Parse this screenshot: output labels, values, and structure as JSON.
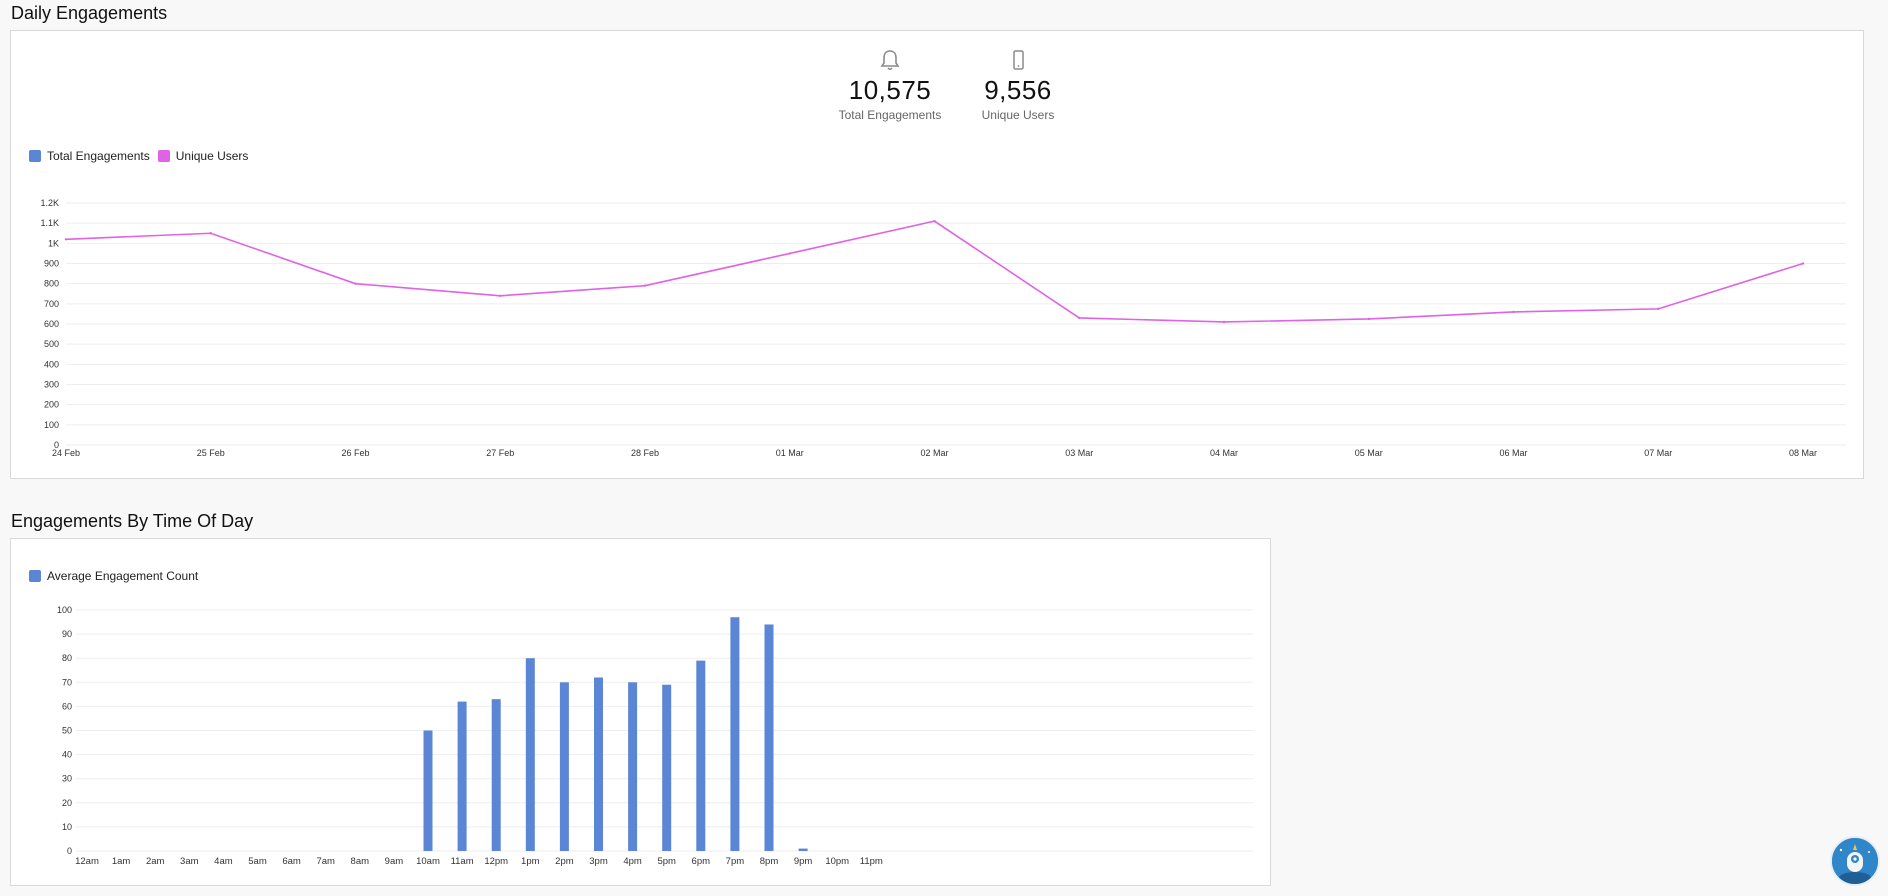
{
  "sections": {
    "daily": {
      "title": "Daily Engagements",
      "stats": [
        {
          "icon": "bell-icon",
          "value": "10,575",
          "label": "Total Engagements"
        },
        {
          "icon": "mobile-phone-icon",
          "value": "9,556",
          "label": "Unique Users"
        }
      ]
    },
    "time_of_day": {
      "title": "Engagements By Time Of Day"
    }
  },
  "colors": {
    "total_engagements": "#5b86d6",
    "unique_users": "#e062e6",
    "bar": "#5b86d6",
    "grid": "#eeeeee"
  },
  "chart_data": [
    {
      "type": "line",
      "title": "Daily Engagements",
      "legend": [
        "Total Engagements",
        "Unique Users"
      ],
      "legend_position": "top-left",
      "grid": true,
      "x": [
        "24 Feb",
        "25 Feb",
        "26 Feb",
        "27 Feb",
        "28 Feb",
        "01 Mar",
        "02 Mar",
        "03 Mar",
        "04 Mar",
        "05 Mar",
        "06 Mar",
        "07 Mar",
        "08 Mar"
      ],
      "yticks": [
        "0",
        "100",
        "200",
        "300",
        "400",
        "500",
        "600",
        "700",
        "800",
        "900",
        "1K",
        "1.1K",
        "1.2K"
      ],
      "ylim": [
        0,
        1200
      ],
      "series": [
        {
          "name": "Unique Users",
          "values": [
            1020,
            1050,
            800,
            740,
            790,
            950,
            1110,
            630,
            610,
            625,
            660,
            675,
            900
          ]
        }
      ]
    },
    {
      "type": "bar",
      "title": "Engagements By Time Of Day",
      "legend": [
        "Average Engagement Count"
      ],
      "legend_position": "top-left",
      "grid": true,
      "categories": [
        "12am",
        "1am",
        "2am",
        "3am",
        "4am",
        "5am",
        "6am",
        "7am",
        "8am",
        "9am",
        "10am",
        "11am",
        "12pm",
        "1pm",
        "2pm",
        "3pm",
        "4pm",
        "5pm",
        "6pm",
        "7pm",
        "8pm",
        "9pm",
        "10pm",
        "11pm"
      ],
      "yticks": [
        "0",
        "10",
        "20",
        "30",
        "40",
        "50",
        "60",
        "70",
        "80",
        "90",
        "100"
      ],
      "ylim": [
        0,
        100
      ],
      "series": [
        {
          "name": "Average Engagement Count",
          "values": [
            0,
            0,
            0,
            0,
            0,
            0,
            0,
            0,
            0,
            0,
            50,
            62,
            63,
            80,
            70,
            72,
            70,
            69,
            79,
            97,
            94,
            1,
            0,
            0
          ]
        }
      ]
    }
  ]
}
